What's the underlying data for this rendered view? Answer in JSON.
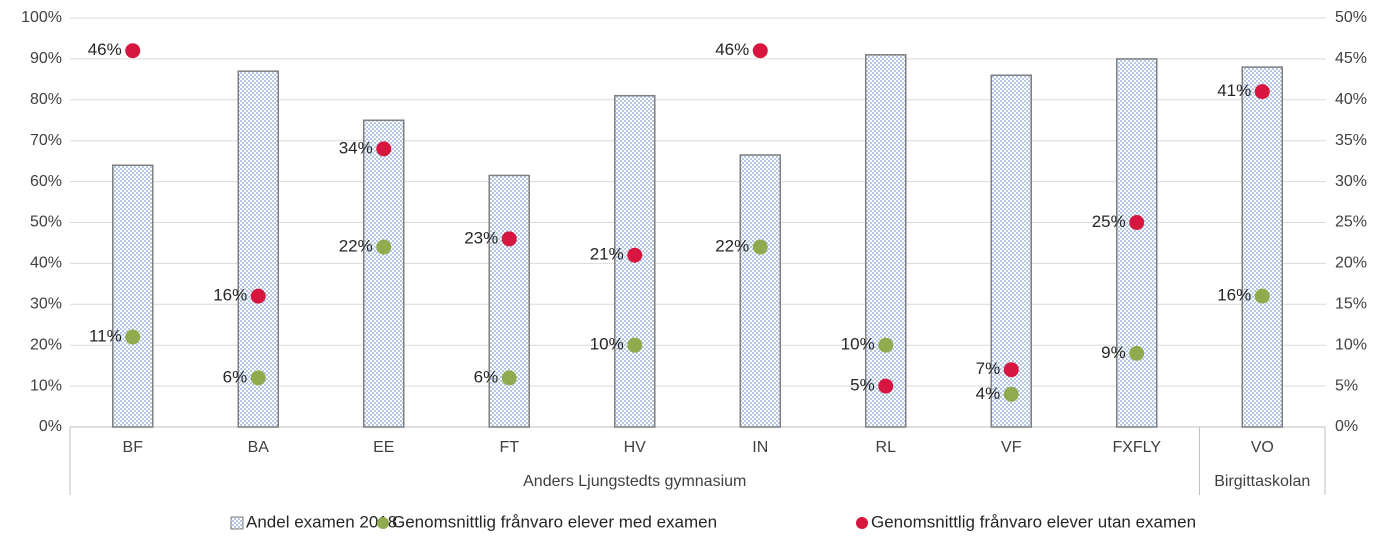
{
  "chart_data": {
    "type": "bar",
    "groups": [
      {
        "name": "Anders Ljungstedts gymnasium",
        "categories": [
          "BF",
          "BA",
          "EE",
          "FT",
          "HV",
          "IN",
          "RL",
          "VF",
          "FXFLY"
        ]
      },
      {
        "name": "Birgittaskolan",
        "categories": [
          "VO"
        ]
      }
    ],
    "series": [
      {
        "name": "Andel examen 2018",
        "type": "bar",
        "color": "#b4c7e7",
        "values": [
          64,
          87,
          75,
          61.5,
          81,
          66.5,
          91,
          86,
          90,
          88
        ]
      },
      {
        "name": "Genomsnittlig frånvaro elever med examen",
        "type": "scatter",
        "axis": "y2",
        "color": "#8fab4e",
        "values": [
          11,
          6,
          22,
          6,
          10,
          22,
          10,
          4,
          9,
          16
        ],
        "value_labels": [
          "11%",
          "6%",
          "22%",
          "6%",
          "10%",
          "22%",
          "10%",
          "4%",
          "9%",
          "16%"
        ]
      },
      {
        "name": "Genomsnittlig frånvaro elever utan examen",
        "type": "scatter",
        "axis": "y2",
        "color": "#d7163f",
        "values": [
          46,
          16,
          34,
          23,
          21,
          46,
          5,
          7,
          25,
          41
        ],
        "value_labels": [
          "46%",
          "16%",
          "34%",
          "23%",
          "21%",
          "46%",
          "5%",
          "7%",
          "25%",
          "41%"
        ]
      }
    ],
    "ylim": [
      0,
      100
    ],
    "yticks": [
      {
        "value": 0,
        "label": "0%"
      },
      {
        "value": 10,
        "label": "10%"
      },
      {
        "value": 20,
        "label": "20%"
      },
      {
        "value": 30,
        "label": "30%"
      },
      {
        "value": 40,
        "label": "40%"
      },
      {
        "value": 50,
        "label": "50%"
      },
      {
        "value": 60,
        "label": "60%"
      },
      {
        "value": 70,
        "label": "70%"
      },
      {
        "value": 80,
        "label": "80%"
      },
      {
        "value": 90,
        "label": "90%"
      },
      {
        "value": 100,
        "label": "100%"
      }
    ],
    "y2lim": [
      0,
      50
    ],
    "y2ticks": [
      {
        "value": 0,
        "label": "0%"
      },
      {
        "value": 5,
        "label": "5%"
      },
      {
        "value": 10,
        "label": "10%"
      },
      {
        "value": 15,
        "label": "15%"
      },
      {
        "value": 20,
        "label": "20%"
      },
      {
        "value": 25,
        "label": "25%"
      },
      {
        "value": 30,
        "label": "30%"
      },
      {
        "value": 35,
        "label": "35%"
      },
      {
        "value": 40,
        "label": "40%"
      },
      {
        "value": 45,
        "label": "45%"
      },
      {
        "value": 50,
        "label": "50%"
      }
    ],
    "grid": true,
    "legend": "bottom"
  }
}
